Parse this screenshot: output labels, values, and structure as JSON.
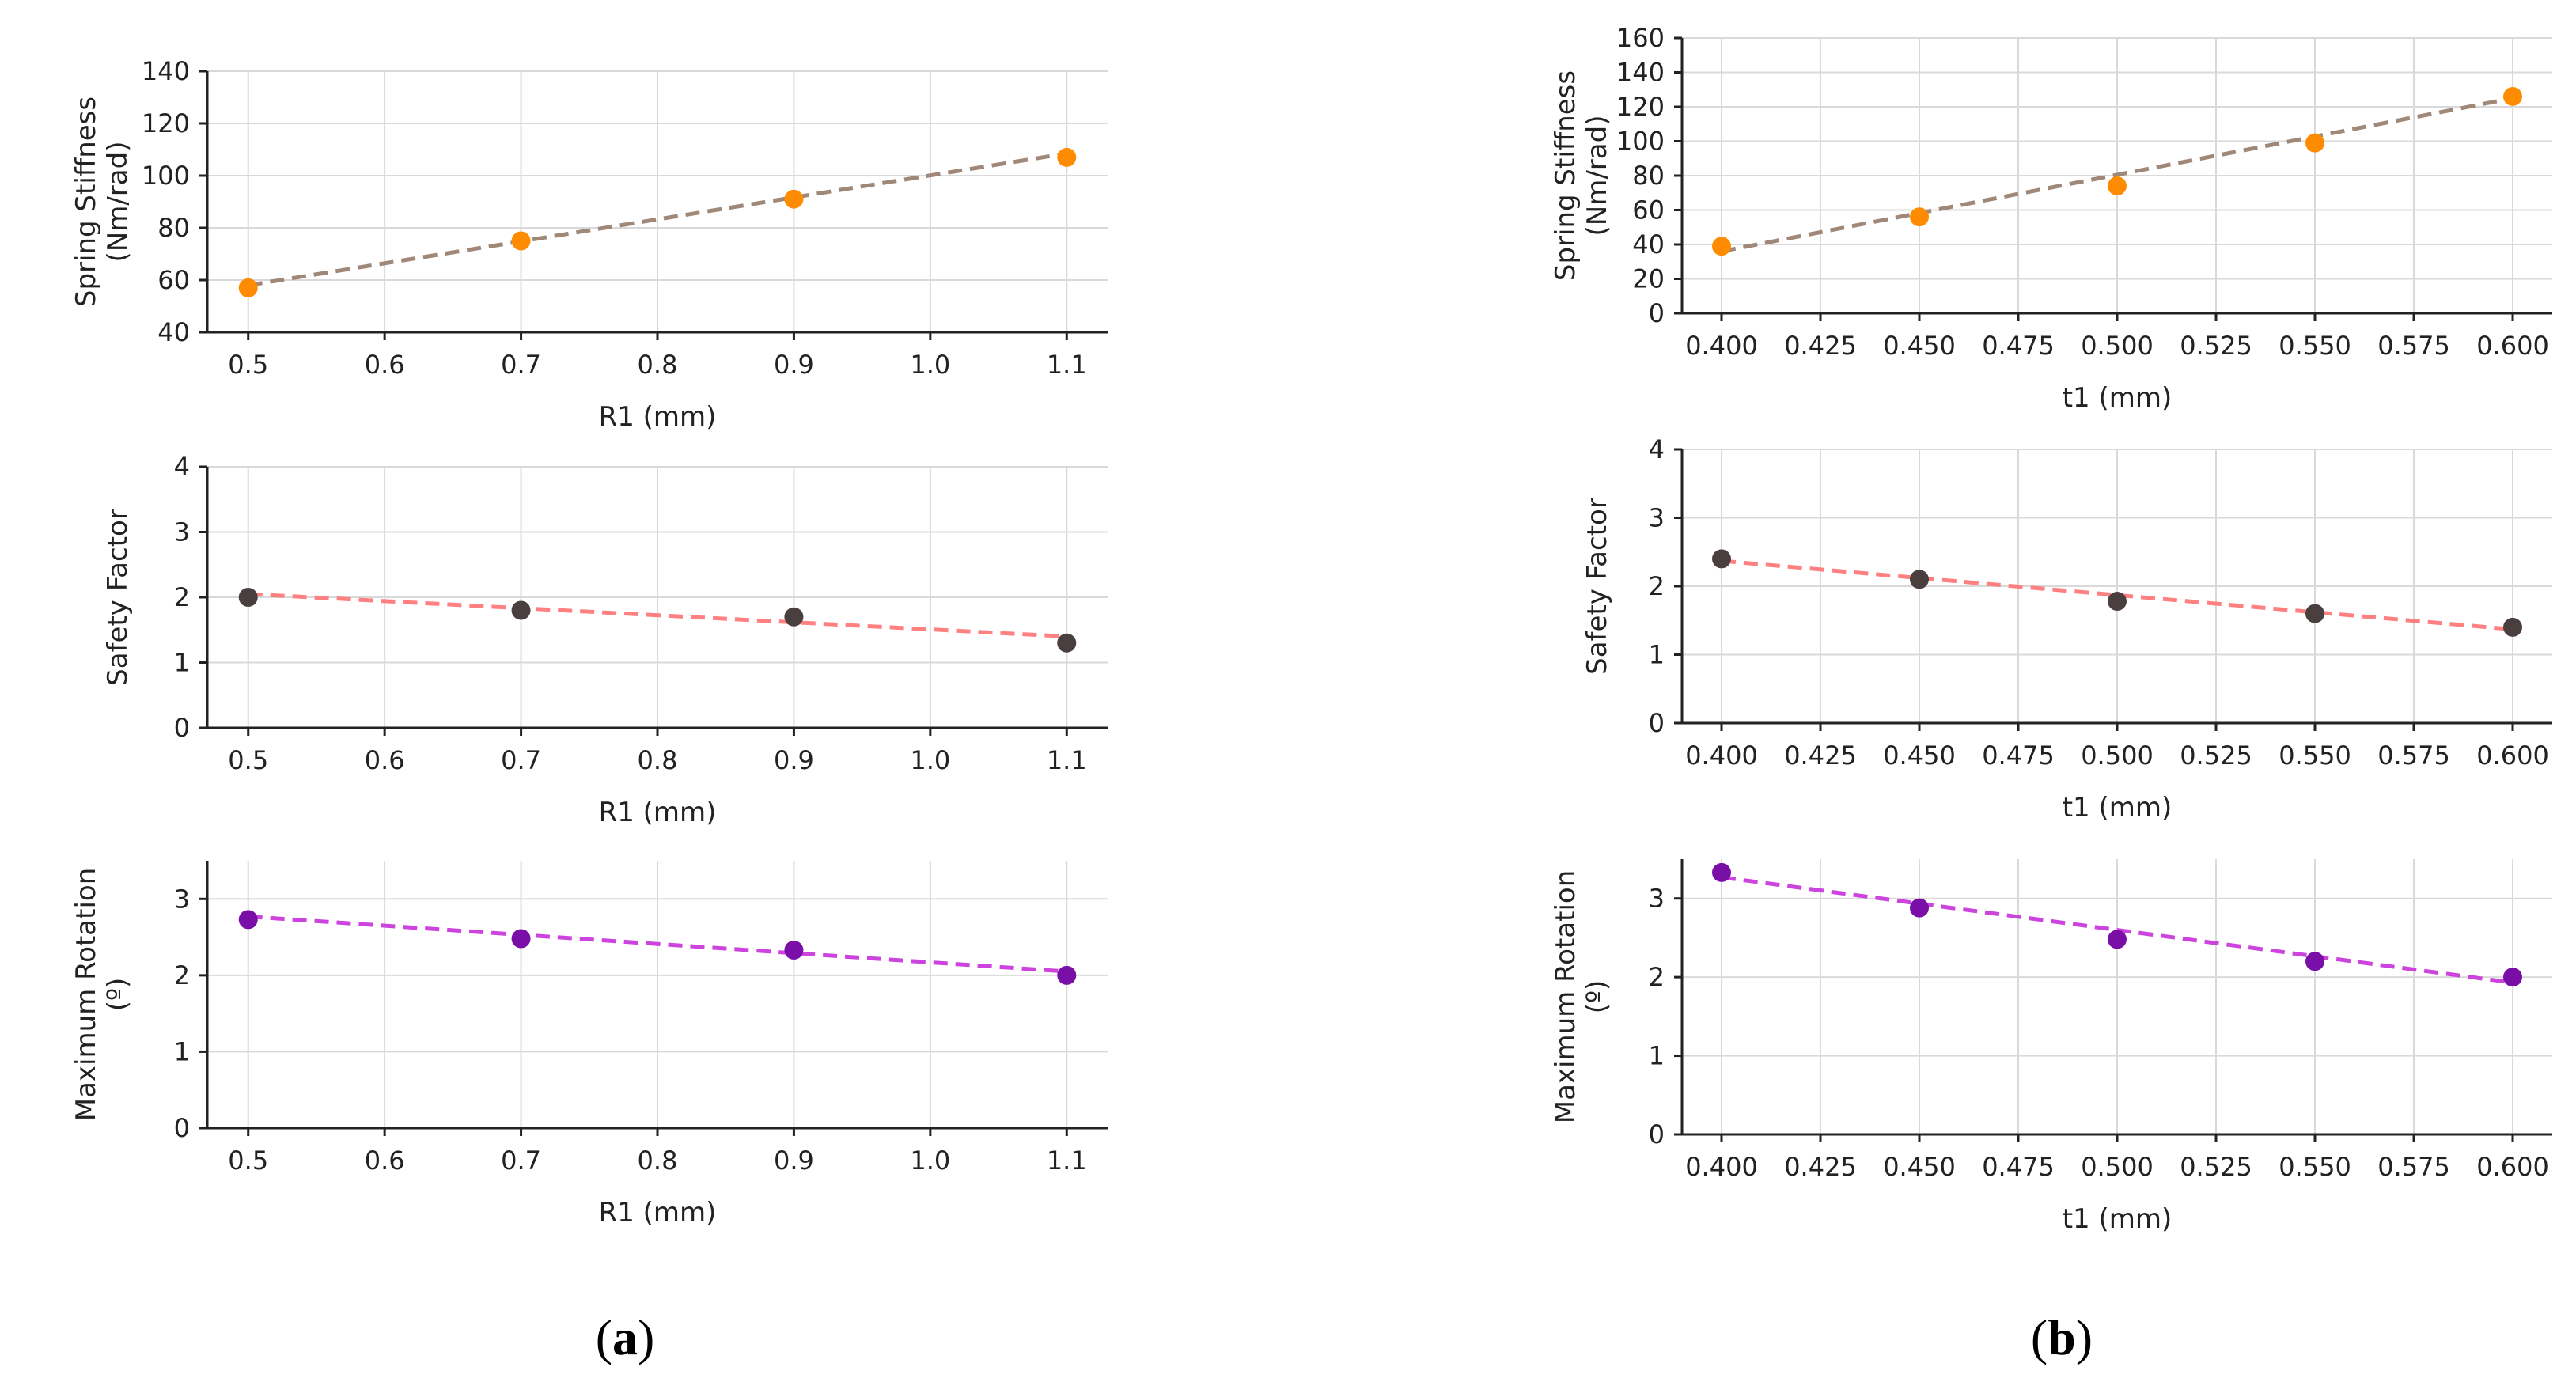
{
  "figure": {
    "panels": [
      {
        "open": "(",
        "letter": "a",
        "close": ")"
      },
      {
        "open": "(",
        "letter": "b",
        "close": ")"
      }
    ]
  },
  "colors": {
    "grid": "#d9d9d9",
    "axis": "#222222",
    "stiffness_marker": "#ff8c00",
    "stiffness_line": "#a08878",
    "safety_marker": "#4a3f3f",
    "safety_line": "#ff8080",
    "rotation_marker": "#7a0fa8",
    "rotation_line": "#cc44dd"
  },
  "chart_data": [
    {
      "type": "scatter",
      "panel": "a",
      "xlabel": "R1 (mm)",
      "ylabel": [
        "Spring Stiffness",
        "(Nm/rad)"
      ],
      "xlim": [
        0.47,
        1.13
      ],
      "ylim": [
        40,
        140
      ],
      "xticks": [
        0.5,
        0.6,
        0.7,
        0.8,
        0.9,
        1.0,
        1.1
      ],
      "xtick_labels": [
        "0.5",
        "0.6",
        "0.7",
        "0.8",
        "0.9",
        "1.0",
        "1.1"
      ],
      "yticks": [
        40,
        60,
        80,
        100,
        120,
        140
      ],
      "ytick_labels": [
        "40",
        "60",
        "80",
        "100",
        "120",
        "140"
      ],
      "x": [
        0.5,
        0.7,
        0.9,
        1.1
      ],
      "y": [
        57,
        75,
        91,
        107
      ],
      "fit": [
        [
          0.5,
          58
        ],
        [
          1.1,
          108.5
        ]
      ],
      "marker_color": "stiffness_marker",
      "line_color": "stiffness_line"
    },
    {
      "type": "scatter",
      "panel": "a",
      "xlabel": "R1 (mm)",
      "ylabel": [
        "Safety Factor"
      ],
      "xlim": [
        0.47,
        1.13
      ],
      "ylim": [
        0,
        4
      ],
      "xticks": [
        0.5,
        0.6,
        0.7,
        0.8,
        0.9,
        1.0,
        1.1
      ],
      "xtick_labels": [
        "0.5",
        "0.6",
        "0.7",
        "0.8",
        "0.9",
        "1.0",
        "1.1"
      ],
      "yticks": [
        0,
        1,
        2,
        3,
        4
      ],
      "ytick_labels": [
        "0",
        "1",
        "2",
        "3",
        "4"
      ],
      "x": [
        0.5,
        0.7,
        0.9,
        1.1
      ],
      "y": [
        2.0,
        1.8,
        1.7,
        1.3
      ],
      "fit": [
        [
          0.5,
          2.05
        ],
        [
          1.1,
          1.4
        ]
      ],
      "marker_color": "safety_marker",
      "line_color": "safety_line"
    },
    {
      "type": "scatter",
      "panel": "a",
      "xlabel": "R1 (mm)",
      "ylabel": [
        "Maximum Rotation",
        "(º)"
      ],
      "xlim": [
        0.47,
        1.13
      ],
      "ylim": [
        0,
        3.5
      ],
      "xticks": [
        0.5,
        0.6,
        0.7,
        0.8,
        0.9,
        1.0,
        1.1
      ],
      "xtick_labels": [
        "0.5",
        "0.6",
        "0.7",
        "0.8",
        "0.9",
        "1.0",
        "1.1"
      ],
      "yticks": [
        0,
        1,
        2,
        3
      ],
      "ytick_labels": [
        "0",
        "1",
        "2",
        "3"
      ],
      "x": [
        0.5,
        0.7,
        0.9,
        1.1
      ],
      "y": [
        2.73,
        2.48,
        2.33,
        2.0
      ],
      "fit": [
        [
          0.5,
          2.77
        ],
        [
          1.1,
          2.05
        ]
      ],
      "marker_color": "rotation_marker",
      "line_color": "rotation_line"
    },
    {
      "type": "scatter",
      "panel": "b",
      "xlabel": "t1 (mm)",
      "ylabel": [
        "Spring Stiffness",
        "(Nm/rad)"
      ],
      "xlim": [
        0.39,
        0.61
      ],
      "ylim": [
        0,
        160
      ],
      "xticks": [
        0.4,
        0.425,
        0.45,
        0.475,
        0.5,
        0.525,
        0.55,
        0.575,
        0.6
      ],
      "xtick_labels": [
        "0.400",
        "0.425",
        "0.450",
        "0.475",
        "0.500",
        "0.525",
        "0.550",
        "0.575",
        "0.600"
      ],
      "yticks": [
        0,
        20,
        40,
        60,
        80,
        100,
        120,
        140,
        160
      ],
      "ytick_labels": [
        "0",
        "20",
        "40",
        "60",
        "80",
        "100",
        "120",
        "140",
        "160"
      ],
      "x": [
        0.4,
        0.45,
        0.5,
        0.55,
        0.6
      ],
      "y": [
        39,
        56,
        74,
        99,
        126
      ],
      "fit": [
        [
          0.4,
          36
        ],
        [
          0.6,
          125
        ]
      ],
      "marker_color": "stiffness_marker",
      "line_color": "stiffness_line"
    },
    {
      "type": "scatter",
      "panel": "b",
      "xlabel": "t1 (mm)",
      "ylabel": [
        "Safety Factor"
      ],
      "xlim": [
        0.39,
        0.61
      ],
      "ylim": [
        0,
        4
      ],
      "xticks": [
        0.4,
        0.425,
        0.45,
        0.475,
        0.5,
        0.525,
        0.55,
        0.575,
        0.6
      ],
      "xtick_labels": [
        "0.400",
        "0.425",
        "0.450",
        "0.475",
        "0.500",
        "0.525",
        "0.550",
        "0.575",
        "0.600"
      ],
      "yticks": [
        0,
        1,
        2,
        3,
        4
      ],
      "ytick_labels": [
        "0",
        "1",
        "2",
        "3",
        "4"
      ],
      "x": [
        0.4,
        0.45,
        0.5,
        0.55,
        0.6
      ],
      "y": [
        2.4,
        2.1,
        1.78,
        1.6,
        1.4
      ],
      "fit": [
        [
          0.4,
          2.37
        ],
        [
          0.6,
          1.37
        ]
      ],
      "marker_color": "safety_marker",
      "line_color": "safety_line"
    },
    {
      "type": "scatter",
      "panel": "b",
      "xlabel": "t1 (mm)",
      "ylabel": [
        "Maximum Rotation",
        "(º)"
      ],
      "xlim": [
        0.39,
        0.61
      ],
      "ylim": [
        0,
        3.5
      ],
      "xticks": [
        0.4,
        0.425,
        0.45,
        0.475,
        0.5,
        0.525,
        0.55,
        0.575,
        0.6
      ],
      "xtick_labels": [
        "0.400",
        "0.425",
        "0.450",
        "0.475",
        "0.500",
        "0.525",
        "0.550",
        "0.575",
        "0.600"
      ],
      "yticks": [
        0,
        1,
        2,
        3
      ],
      "ytick_labels": [
        "0",
        "1",
        "2",
        "3"
      ],
      "x": [
        0.4,
        0.45,
        0.5,
        0.55,
        0.6
      ],
      "y": [
        3.33,
        2.88,
        2.48,
        2.2,
        2.0
      ],
      "fit": [
        [
          0.4,
          3.27
        ],
        [
          0.6,
          1.93
        ]
      ],
      "marker_color": "rotation_marker",
      "line_color": "rotation_line"
    }
  ]
}
